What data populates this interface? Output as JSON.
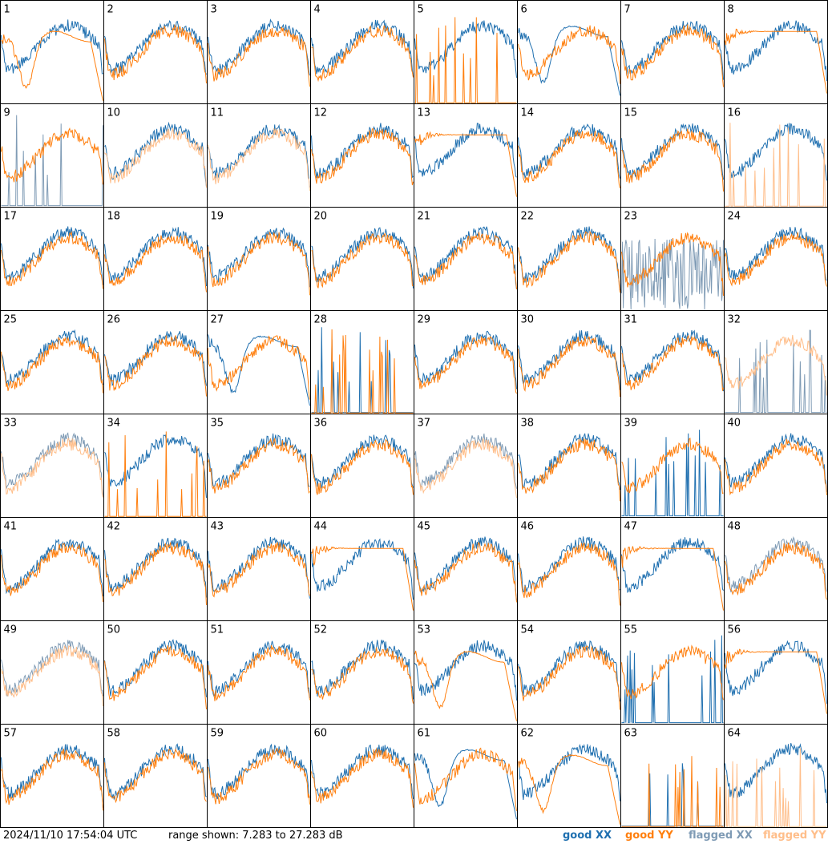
{
  "footer": {
    "timestamp": "2024/11/10 17:54:04 UTC",
    "range_text": "range shown: 7.283 to 27.283 dB"
  },
  "legend": [
    {
      "label": "good XX",
      "color": "#2070b0"
    },
    {
      "label": "good YY",
      "color": "#ff7f0e"
    },
    {
      "label": "flagged XX",
      "color": "#7f9bb5"
    },
    {
      "label": "flagged YY",
      "color": "#ffbe8a"
    }
  ],
  "chart_data": {
    "type": "line",
    "layout": "8x8 small multiples",
    "ylim_db": [
      7.283,
      27.283
    ],
    "x": "frequency channel (unlabeled)",
    "panels": [
      {
        "label": "1",
        "xx": "good",
        "yy": "good",
        "shape_yy": "dip"
      },
      {
        "label": "2",
        "xx": "good",
        "yy": "good"
      },
      {
        "label": "3",
        "xx": "good",
        "yy": "good"
      },
      {
        "label": "4",
        "xx": "good",
        "yy": "good"
      },
      {
        "label": "5",
        "xx": "good",
        "yy": "good",
        "shape_yy": "dead"
      },
      {
        "label": "6",
        "xx": "good",
        "yy": "good",
        "shape_xx": "dip"
      },
      {
        "label": "7",
        "xx": "good",
        "yy": "good"
      },
      {
        "label": "8",
        "xx": "good",
        "yy": "good",
        "shape_yy": "flat"
      },
      {
        "label": "9",
        "xx": "flagged",
        "yy": "good",
        "shape_xx": "dead"
      },
      {
        "label": "10",
        "xx": "good",
        "yy": "flagged"
      },
      {
        "label": "11",
        "xx": "good",
        "yy": "flagged"
      },
      {
        "label": "12",
        "xx": "good",
        "yy": "good"
      },
      {
        "label": "13",
        "xx": "good",
        "yy": "good",
        "shape_yy": "flat"
      },
      {
        "label": "14",
        "xx": "good",
        "yy": "good"
      },
      {
        "label": "15",
        "xx": "good",
        "yy": "good"
      },
      {
        "label": "16",
        "xx": "good",
        "yy": "flagged",
        "shape_yy": "dead"
      },
      {
        "label": "17",
        "xx": "good",
        "yy": "good"
      },
      {
        "label": "18",
        "xx": "good",
        "yy": "good"
      },
      {
        "label": "19",
        "xx": "good",
        "yy": "good"
      },
      {
        "label": "20",
        "xx": "good",
        "yy": "good"
      },
      {
        "label": "21",
        "xx": "good",
        "yy": "good"
      },
      {
        "label": "22",
        "xx": "good",
        "yy": "good"
      },
      {
        "label": "23",
        "xx": "flagged",
        "yy": "good",
        "shape_xx": "noisy"
      },
      {
        "label": "24",
        "xx": "good",
        "yy": "good"
      },
      {
        "label": "25",
        "xx": "good",
        "yy": "good"
      },
      {
        "label": "26",
        "xx": "good",
        "yy": "good"
      },
      {
        "label": "27",
        "xx": "good",
        "yy": "good",
        "shape_xx": "dip"
      },
      {
        "label": "28",
        "xx": "good",
        "yy": "good",
        "shape_xx": "dead",
        "shape_yy": "dead"
      },
      {
        "label": "29",
        "xx": "good",
        "yy": "good"
      },
      {
        "label": "30",
        "xx": "good",
        "yy": "good"
      },
      {
        "label": "31",
        "xx": "good",
        "yy": "good"
      },
      {
        "label": "32",
        "xx": "flagged",
        "yy": "flagged",
        "shape_xx": "dead"
      },
      {
        "label": "33",
        "xx": "flagged",
        "yy": "flagged"
      },
      {
        "label": "34",
        "xx": "good",
        "yy": "good",
        "shape_yy": "dead"
      },
      {
        "label": "35",
        "xx": "good",
        "yy": "good"
      },
      {
        "label": "36",
        "xx": "good",
        "yy": "good"
      },
      {
        "label": "37",
        "xx": "flagged",
        "yy": "flagged"
      },
      {
        "label": "38",
        "xx": "good",
        "yy": "good"
      },
      {
        "label": "39",
        "xx": "good",
        "yy": "good",
        "shape_xx": "dead"
      },
      {
        "label": "40",
        "xx": "good",
        "yy": "good"
      },
      {
        "label": "41",
        "xx": "good",
        "yy": "good"
      },
      {
        "label": "42",
        "xx": "good",
        "yy": "good"
      },
      {
        "label": "43",
        "xx": "good",
        "yy": "good"
      },
      {
        "label": "44",
        "xx": "good",
        "yy": "good",
        "shape_yy": "flat"
      },
      {
        "label": "45",
        "xx": "good",
        "yy": "good"
      },
      {
        "label": "46",
        "xx": "good",
        "yy": "good"
      },
      {
        "label": "47",
        "xx": "good",
        "yy": "good",
        "shape_yy": "flat"
      },
      {
        "label": "48",
        "xx": "flagged",
        "yy": "good"
      },
      {
        "label": "49",
        "xx": "flagged",
        "yy": "flagged"
      },
      {
        "label": "50",
        "xx": "good",
        "yy": "good"
      },
      {
        "label": "51",
        "xx": "good",
        "yy": "good"
      },
      {
        "label": "52",
        "xx": "good",
        "yy": "good"
      },
      {
        "label": "53",
        "xx": "good",
        "yy": "good",
        "shape_yy": "dip"
      },
      {
        "label": "54",
        "xx": "good",
        "yy": "good"
      },
      {
        "label": "55",
        "xx": "good",
        "yy": "good",
        "shape_xx": "dead"
      },
      {
        "label": "56",
        "xx": "good",
        "yy": "good",
        "shape_yy": "flat"
      },
      {
        "label": "57",
        "xx": "good",
        "yy": "good"
      },
      {
        "label": "58",
        "xx": "good",
        "yy": "good"
      },
      {
        "label": "59",
        "xx": "good",
        "yy": "good"
      },
      {
        "label": "60",
        "xx": "good",
        "yy": "good"
      },
      {
        "label": "61",
        "xx": "good",
        "yy": "good",
        "shape_xx": "dip"
      },
      {
        "label": "62",
        "xx": "good",
        "yy": "good",
        "shape_yy": "dip"
      },
      {
        "label": "63",
        "xx": "good",
        "yy": "good",
        "shape_xx": "dead",
        "shape_yy": "dead"
      },
      {
        "label": "64",
        "xx": "good",
        "yy": "flagged",
        "shape_yy": "dead"
      }
    ]
  }
}
